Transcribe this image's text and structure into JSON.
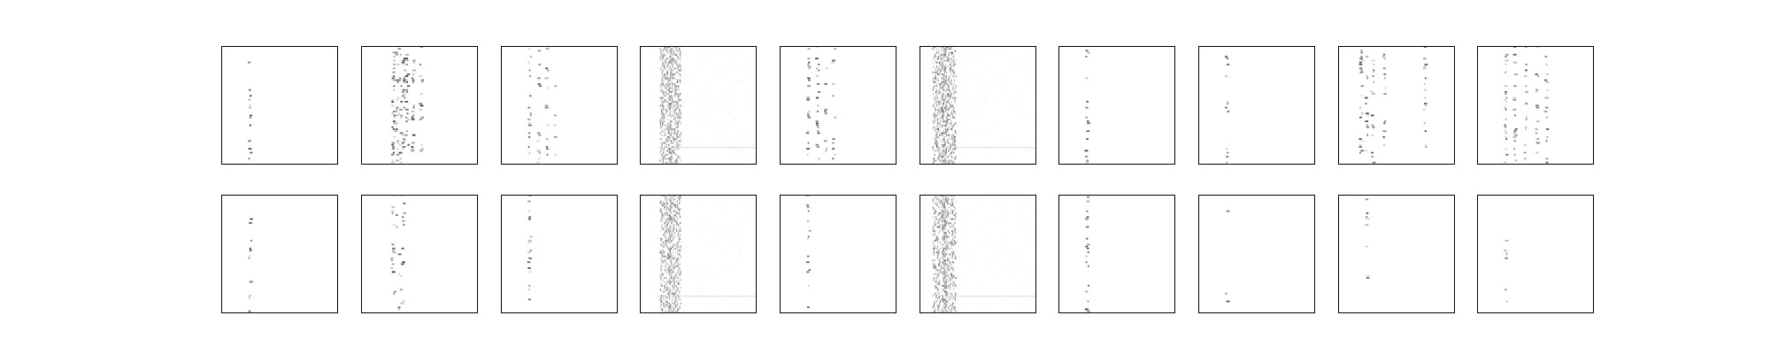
{
  "chart_data": {
    "type": "heatmap",
    "layout": {
      "rows": 2,
      "cols": 10
    },
    "colormap": [
      "#ffffff",
      "#000000"
    ],
    "axes_ticks": false,
    "panels": [
      {
        "row": 0,
        "col": 0,
        "pattern": "sparse-columns",
        "columns": [
          0.25
        ],
        "density": 0.55,
        "intensity": 0.75,
        "spread": 0.01
      },
      {
        "row": 0,
        "col": 1,
        "pattern": "dense-cluster",
        "columns": [
          0.28,
          0.31,
          0.34,
          0.37,
          0.4,
          0.45,
          0.52
        ],
        "density": 0.9,
        "intensity": 0.7,
        "spread": 0.01
      },
      {
        "row": 0,
        "col": 2,
        "pattern": "sparse-columns",
        "columns": [
          0.25,
          0.33,
          0.4,
          0.47
        ],
        "density": 0.6,
        "intensity": 0.6,
        "spread": 0.01
      },
      {
        "row": 0,
        "col": 3,
        "pattern": "noisy-band",
        "columns": [
          0.22,
          0.3
        ],
        "density": 0.95,
        "intensity": 0.45,
        "spread": 0.05
      },
      {
        "row": 0,
        "col": 4,
        "pattern": "sparse-columns",
        "columns": [
          0.25,
          0.33,
          0.4,
          0.47
        ],
        "density": 0.65,
        "intensity": 0.65,
        "spread": 0.01
      },
      {
        "row": 0,
        "col": 5,
        "pattern": "noisy-band",
        "columns": [
          0.17,
          0.25
        ],
        "density": 0.95,
        "intensity": 0.5,
        "spread": 0.06
      },
      {
        "row": 0,
        "col": 6,
        "pattern": "sparse-columns",
        "columns": [
          0.25
        ],
        "density": 0.6,
        "intensity": 0.7,
        "spread": 0.01
      },
      {
        "row": 0,
        "col": 7,
        "pattern": "sparse-columns",
        "columns": [
          0.25
        ],
        "density": 0.3,
        "intensity": 0.6,
        "spread": 0.01
      },
      {
        "row": 0,
        "col": 8,
        "pattern": "dense-cluster",
        "columns": [
          0.2,
          0.25,
          0.3,
          0.4,
          0.75
        ],
        "density": 0.75,
        "intensity": 0.65,
        "spread": 0.01
      },
      {
        "row": 0,
        "col": 9,
        "pattern": "dense-cluster",
        "columns": [
          0.25,
          0.33,
          0.42,
          0.52,
          0.6
        ],
        "density": 0.75,
        "intensity": 0.6,
        "spread": 0.01
      },
      {
        "row": 1,
        "col": 0,
        "pattern": "sparse-columns",
        "columns": [
          0.25
        ],
        "density": 0.55,
        "intensity": 0.75,
        "spread": 0.01
      },
      {
        "row": 1,
        "col": 1,
        "pattern": "dense-cluster",
        "columns": [
          0.28,
          0.32,
          0.36
        ],
        "density": 0.55,
        "intensity": 0.7,
        "spread": 0.015
      },
      {
        "row": 1,
        "col": 2,
        "pattern": "sparse-columns",
        "columns": [
          0.25
        ],
        "density": 0.5,
        "intensity": 0.65,
        "spread": 0.01
      },
      {
        "row": 1,
        "col": 3,
        "pattern": "noisy-band",
        "columns": [
          0.22,
          0.3
        ],
        "density": 0.9,
        "intensity": 0.45,
        "spread": 0.05
      },
      {
        "row": 1,
        "col": 4,
        "pattern": "sparse-columns",
        "columns": [
          0.25
        ],
        "density": 0.6,
        "intensity": 0.65,
        "spread": 0.01
      },
      {
        "row": 1,
        "col": 5,
        "pattern": "noisy-band",
        "columns": [
          0.17,
          0.25
        ],
        "density": 0.9,
        "intensity": 0.5,
        "spread": 0.06
      },
      {
        "row": 1,
        "col": 6,
        "pattern": "sparse-columns",
        "columns": [
          0.25
        ],
        "density": 0.6,
        "intensity": 0.7,
        "spread": 0.01
      },
      {
        "row": 1,
        "col": 7,
        "pattern": "sparse-columns",
        "columns": [
          0.25
        ],
        "density": 0.3,
        "intensity": 0.6,
        "spread": 0.01
      },
      {
        "row": 1,
        "col": 8,
        "pattern": "sparse-columns",
        "columns": [
          0.25
        ],
        "density": 0.2,
        "intensity": 0.6,
        "spread": 0.01
      },
      {
        "row": 1,
        "col": 9,
        "pattern": "sparse-columns",
        "columns": [
          0.25
        ],
        "density": 0.25,
        "intensity": 0.55,
        "spread": 0.01
      }
    ]
  }
}
